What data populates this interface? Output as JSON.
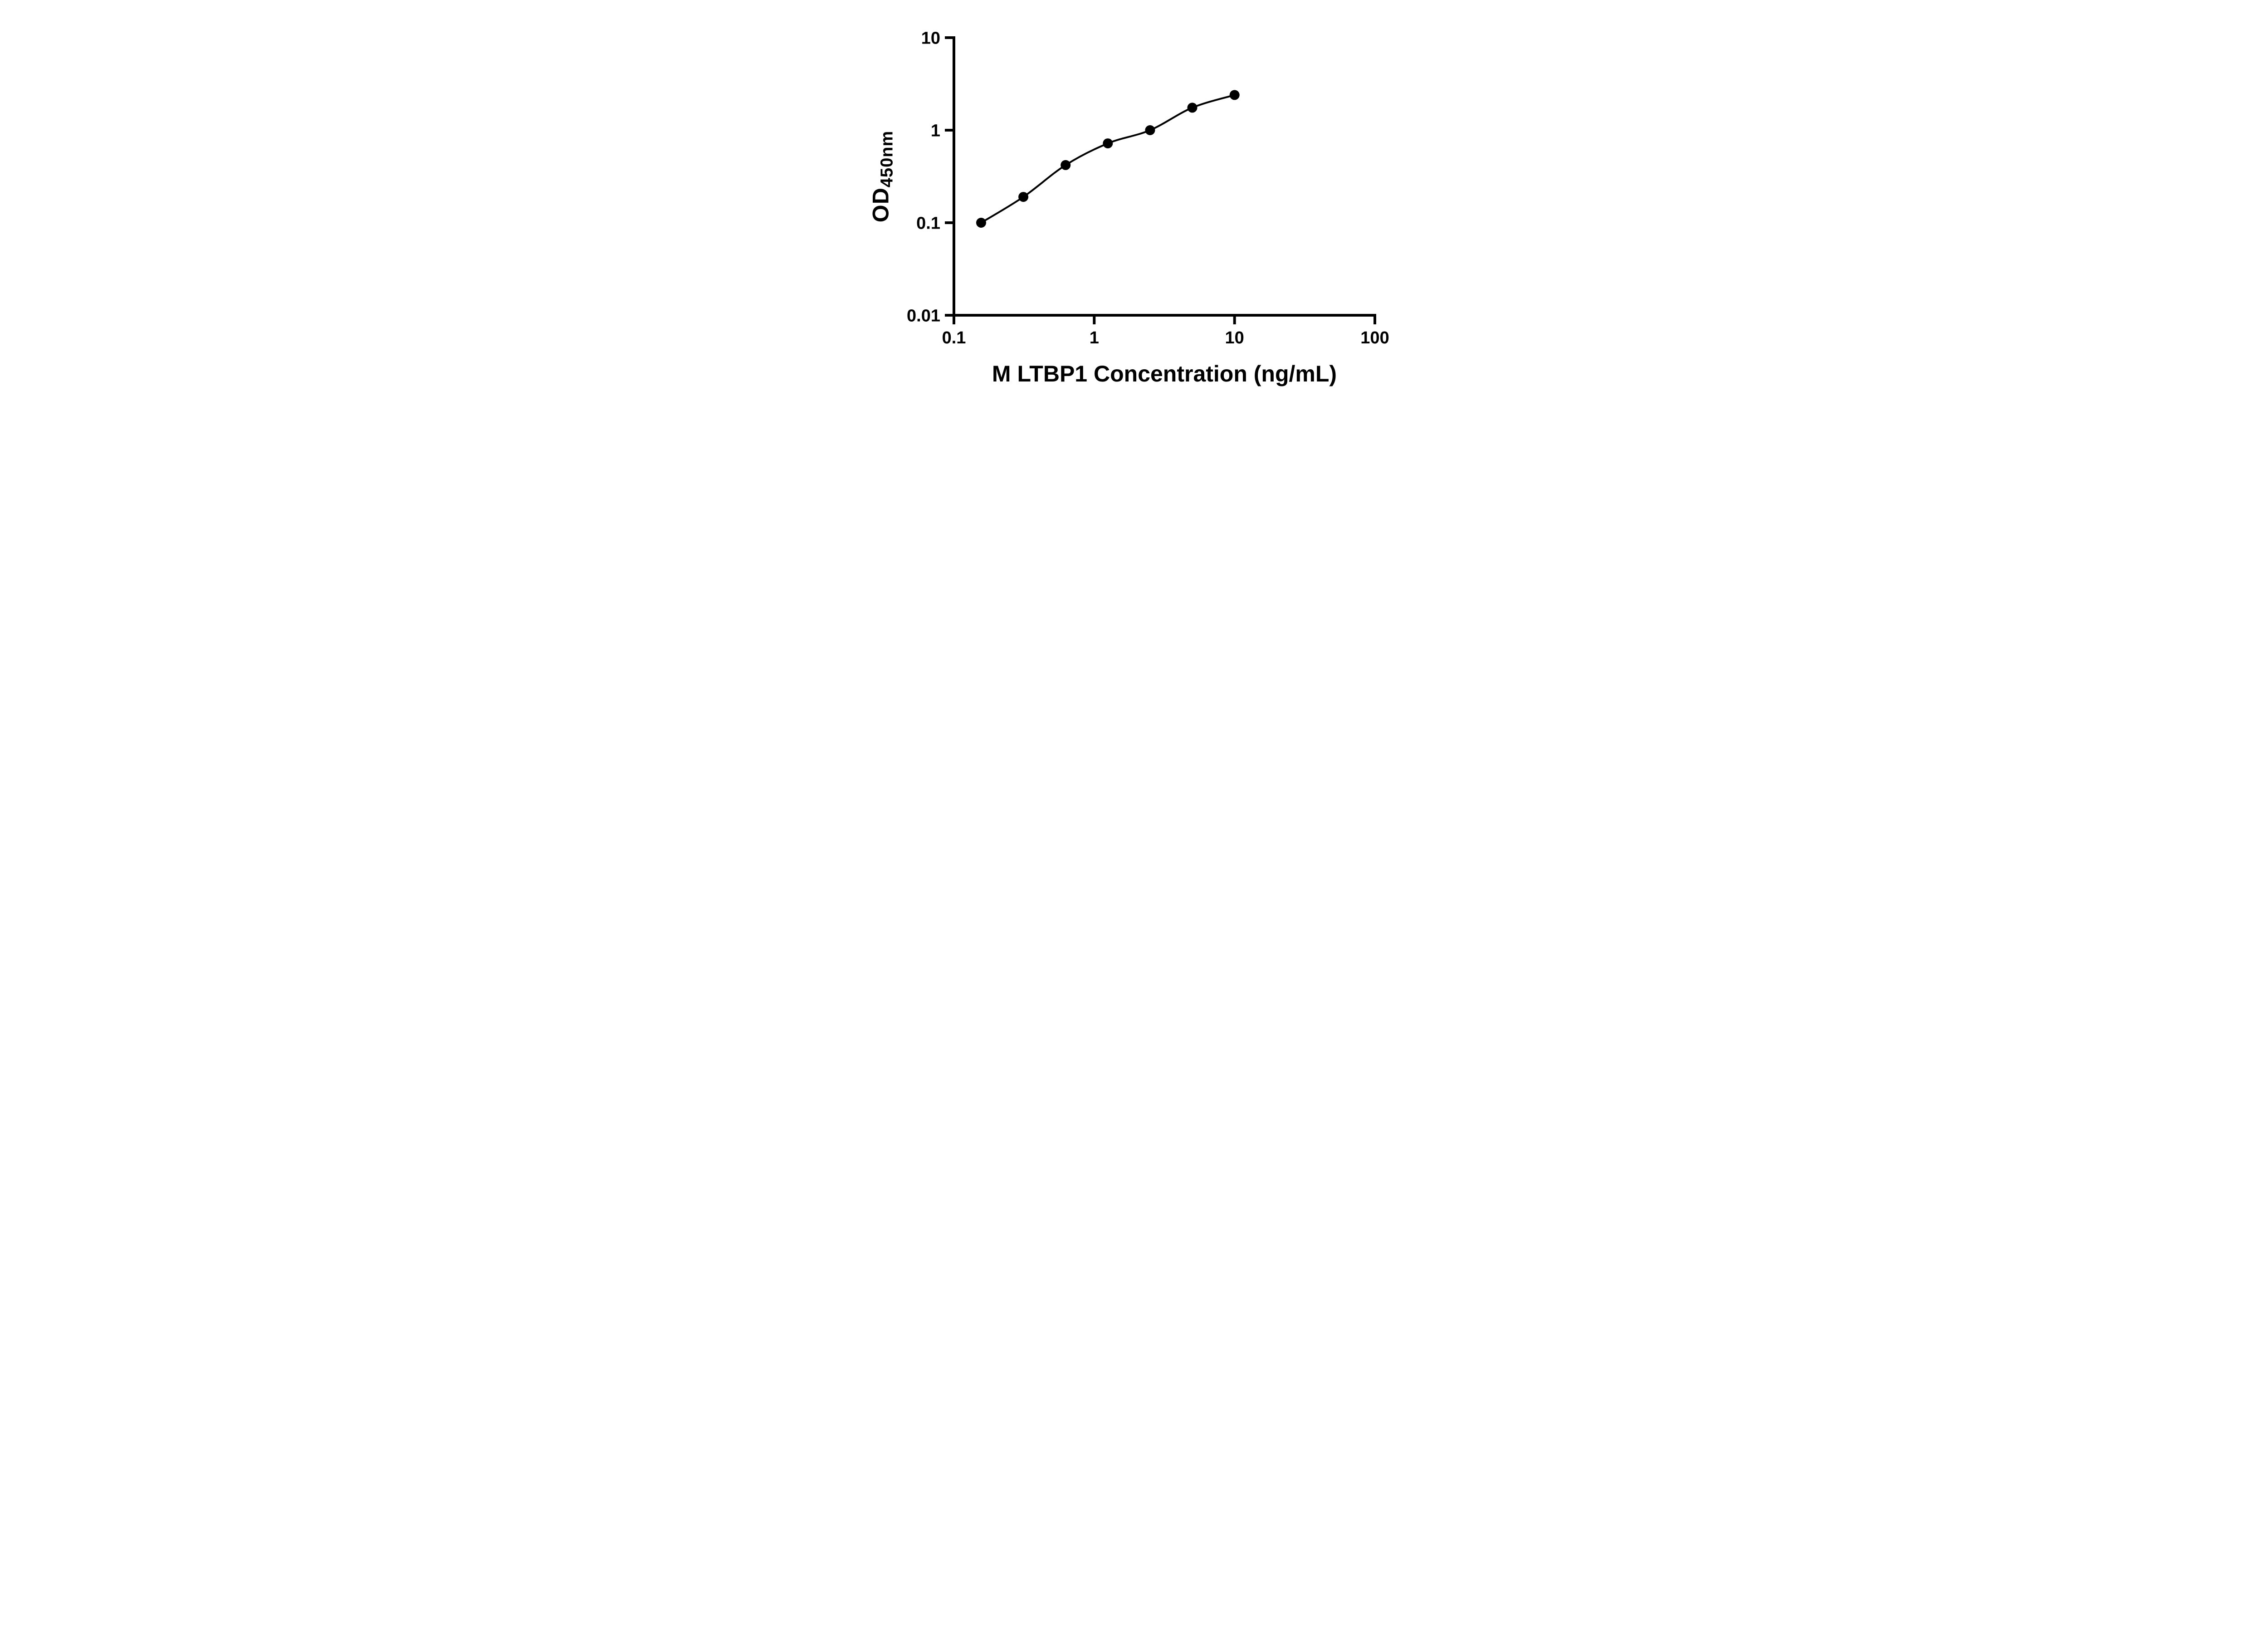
{
  "figure": {
    "background_color": "#ffffff"
  },
  "chart_data": {
    "type": "scatter",
    "title": "",
    "xlabel": "M LTBP1 Concentration (ng/mL)",
    "ylabel_main": "OD",
    "ylabel_sub": "450nm",
    "x_scale": "log10",
    "y_scale": "log10",
    "xlim": [
      0.1,
      100
    ],
    "ylim": [
      0.01,
      10
    ],
    "grid": false,
    "legend": "none",
    "axis_color": "#000000",
    "x_ticks": [
      {
        "value": 0.1,
        "label": "0.1"
      },
      {
        "value": 1,
        "label": "1"
      },
      {
        "value": 10,
        "label": "10"
      },
      {
        "value": 100,
        "label": "100"
      }
    ],
    "y_ticks": [
      {
        "value": 0.01,
        "label": "0.01"
      },
      {
        "value": 0.1,
        "label": "0.1"
      },
      {
        "value": 1,
        "label": "1"
      },
      {
        "value": 10,
        "label": "10"
      }
    ],
    "series": [
      {
        "marker": "circle",
        "marker_color": "#000000",
        "line_color": "#000000",
        "points": [
          {
            "x": 0.15625,
            "y": 0.1
          },
          {
            "x": 0.3125,
            "y": 0.19
          },
          {
            "x": 0.625,
            "y": 0.42
          },
          {
            "x": 1.25,
            "y": 0.72
          },
          {
            "x": 2.5,
            "y": 1.0
          },
          {
            "x": 5,
            "y": 1.75
          },
          {
            "x": 10,
            "y": 2.4
          }
        ]
      }
    ]
  }
}
